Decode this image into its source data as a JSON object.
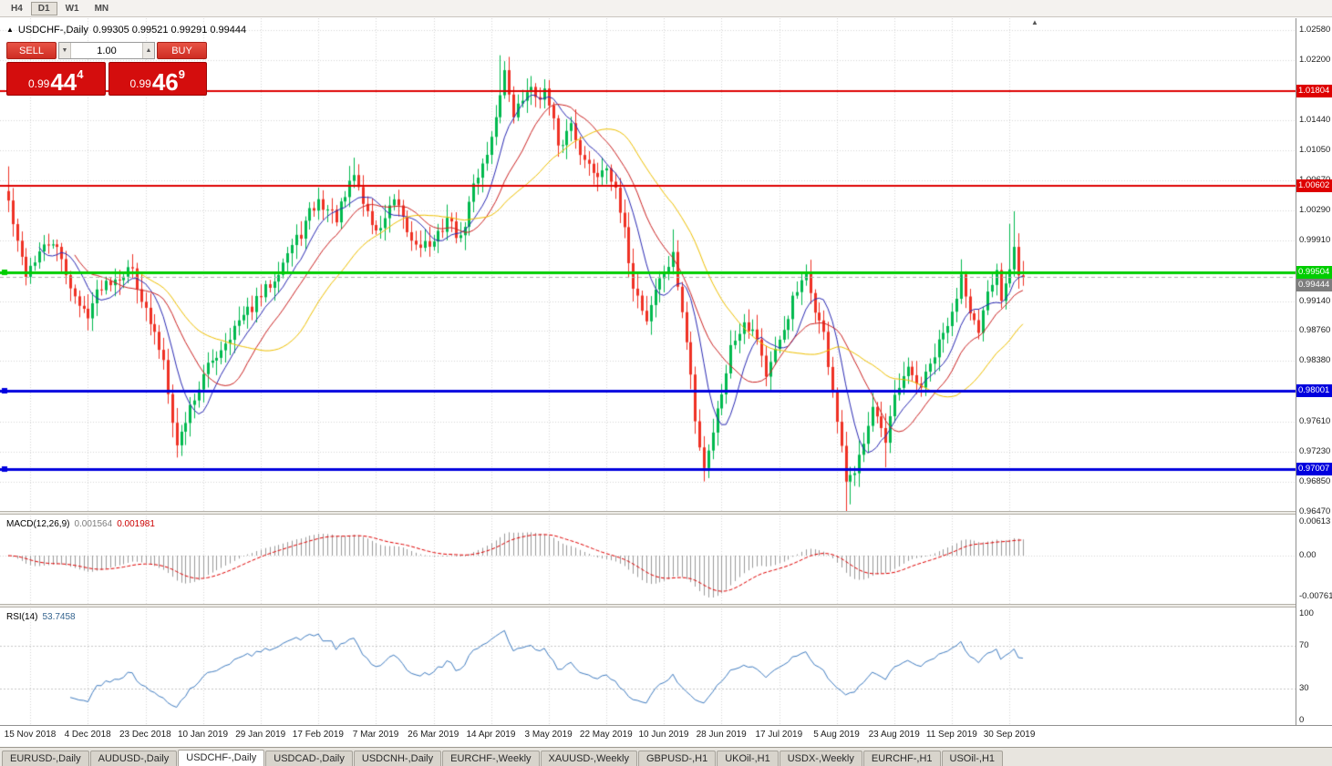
{
  "toolbar": {
    "timeframes": [
      {
        "label": "H4",
        "active": false
      },
      {
        "label": "D1",
        "active": true
      },
      {
        "label": "W1",
        "active": false
      },
      {
        "label": "MN",
        "active": false
      }
    ]
  },
  "icons": {
    "one_click_toggle": "▲",
    "volume_decrease": "▼",
    "volume_increase": "▲",
    "chart_shift_marker": "▲"
  },
  "title": {
    "symbol": "USDCHF-,Daily",
    "ohlc": "0.99305 0.99521 0.99291 0.99444"
  },
  "one_click": {
    "sell_label": "SELL",
    "buy_label": "BUY",
    "volume": "1.00",
    "sell_price": {
      "prefix": "0.99",
      "big": "44",
      "sup": "4"
    },
    "buy_price": {
      "prefix": "0.99",
      "big": "46",
      "sup": "9"
    }
  },
  "macd": {
    "label": "MACD(12,26,9)",
    "value_main": "0.001564",
    "value_signal": "0.001981",
    "axis_labels": [
      {
        "text": "0.00613",
        "value": 0.00613
      },
      {
        "text": "0.00",
        "value": 0
      },
      {
        "text": "-0.00761",
        "value": -0.00761
      }
    ]
  },
  "rsi": {
    "label": "RSI(14)",
    "value": "53.7458",
    "axis_labels": [
      {
        "text": "100",
        "value": 100
      },
      {
        "text": "70",
        "value": 70
      },
      {
        "text": "30",
        "value": 30
      },
      {
        "text": "0",
        "value": 0
      }
    ]
  },
  "tabs": [
    {
      "label": "EURUSD-,Daily",
      "active": false
    },
    {
      "label": "AUDUSD-,Daily",
      "active": false
    },
    {
      "label": "USDCHF-,Daily",
      "active": true
    },
    {
      "label": "USDCAD-,Daily",
      "active": false
    },
    {
      "label": "USDCNH-,Daily",
      "active": false
    },
    {
      "label": "EURCHF-,Weekly",
      "active": false
    },
    {
      "label": "XAUUSD-,Weekly",
      "active": false
    },
    {
      "label": "GBPUSD-,H1",
      "active": false
    },
    {
      "label": "UKOil-,H1",
      "active": false
    },
    {
      "label": "USDX-,Weekly",
      "active": false
    },
    {
      "label": "EURCHF-,H1",
      "active": false
    },
    {
      "label": "USOil-,H1",
      "active": false
    }
  ],
  "chart_data": {
    "type": "candlestick",
    "symbol": "USDCHF",
    "timeframe": "Daily",
    "ohlc_current": {
      "open": 0.99305,
      "high": 0.99521,
      "low": 0.99291,
      "close": 0.99444
    },
    "bid": 0.99444,
    "ask": 0.99469,
    "price_axis_range": [
      0.9647,
      1.0258
    ],
    "price_axis_labels": [
      "1.02580",
      "1.02200",
      "1.01440",
      "1.01050",
      "1.00670",
      "1.00290",
      "0.99910",
      "0.99140",
      "0.98760",
      "0.98380",
      "0.97610",
      "0.97230",
      "0.96850",
      "0.96470"
    ],
    "date_labels": [
      "15 Nov 2018",
      "4 Dec 2018",
      "23 Dec 2018",
      "10 Jan 2019",
      "29 Jan 2019",
      "17 Feb 2019",
      "7 Mar 2019",
      "26 Mar 2019",
      "14 Apr 2019",
      "3 May 2019",
      "22 May 2019",
      "10 Jun 2019",
      "28 Jun 2019",
      "17 Jul 2019",
      "5 Aug 2019",
      "23 Aug 2019",
      "11 Sep 2019",
      "30 Sep 2019"
    ],
    "horizontal_levels": [
      {
        "price": 1.01804,
        "label": "1.01804",
        "color": "#DE0000",
        "line_width": 2,
        "handle": false
      },
      {
        "price": 1.00602,
        "label": "1.00602",
        "color": "#DE0000",
        "line_width": 2,
        "handle": false
      },
      {
        "price": 0.99504,
        "label": "0.99504",
        "color": "#00CD00",
        "line_width": 3,
        "handle": true
      },
      {
        "price": 0.98001,
        "label": "0.98001",
        "color": "#0000DE",
        "line_width": 3,
        "handle": true
      },
      {
        "price": 0.97007,
        "label": "0.97007",
        "color": "#0000DE",
        "line_width": 3,
        "handle": true
      }
    ],
    "current_price_box": {
      "price": 0.99444,
      "label": "0.99444",
      "color": "#7D7D7D"
    },
    "candles_count": 230,
    "last_close": 0.99444,
    "trend_anchors": [
      [
        0,
        1.004
      ],
      [
        2,
        0.9985
      ],
      [
        4,
        0.995
      ],
      [
        7,
        0.9975
      ],
      [
        10,
        0.999
      ],
      [
        13,
        0.995
      ],
      [
        16,
        0.9905
      ],
      [
        18,
        0.99
      ],
      [
        21,
        0.9935
      ],
      [
        24,
        0.9945
      ],
      [
        28,
        0.9955
      ],
      [
        31,
        0.99
      ],
      [
        33,
        0.987
      ],
      [
        35,
        0.984
      ],
      [
        38,
        0.973
      ],
      [
        41,
        0.978
      ],
      [
        45,
        0.983
      ],
      [
        48,
        0.9855
      ],
      [
        51,
        0.988
      ],
      [
        54,
        0.99
      ],
      [
        57,
        0.992
      ],
      [
        60,
        0.9945
      ],
      [
        63,
        0.9975
      ],
      [
        66,
        1.0
      ],
      [
        68,
        1.0025
      ],
      [
        70,
        1.004
      ],
      [
        72,
        1.003
      ],
      [
        74,
        1.002
      ],
      [
        76,
        1.0045
      ],
      [
        78,
        1.0075
      ],
      [
        80,
        1.004
      ],
      [
        83,
        1.0
      ],
      [
        85,
        1.002
      ],
      [
        87,
        1.004
      ],
      [
        89,
        1.0015
      ],
      [
        91,
        0.999
      ],
      [
        96,
        0.9985
      ],
      [
        99,
        1.002
      ],
      [
        102,
        0.999
      ],
      [
        105,
        1.006
      ],
      [
        107,
        1.009
      ],
      [
        109,
        1.012
      ],
      [
        111,
        1.018
      ],
      [
        112,
        1.0205
      ],
      [
        113,
        1.017
      ],
      [
        114,
        1.015
      ],
      [
        116,
        1.017
      ],
      [
        117,
        1.0185
      ],
      [
        119,
        1.0175
      ],
      [
        121,
        1.018
      ],
      [
        123,
        1.014
      ],
      [
        124,
        1.0105
      ],
      [
        127,
        1.014
      ],
      [
        130,
        1.009
      ],
      [
        133,
        1.0075
      ],
      [
        135,
        1.009
      ],
      [
        137,
        1.005
      ],
      [
        139,
        1.0
      ],
      [
        141,
        0.9935
      ],
      [
        144,
        0.989
      ],
      [
        146,
        0.993
      ],
      [
        148,
        0.995
      ],
      [
        150,
        0.997
      ],
      [
        152,
        0.99
      ],
      [
        154,
        0.982
      ],
      [
        155,
        0.976
      ],
      [
        157,
        0.9705
      ],
      [
        159,
        0.975
      ],
      [
        161,
        0.98
      ],
      [
        163,
        0.9855
      ],
      [
        166,
        0.989
      ],
      [
        169,
        0.987
      ],
      [
        171,
        0.982
      ],
      [
        174,
        0.986
      ],
      [
        177,
        0.9915
      ],
      [
        180,
        0.9945
      ],
      [
        182,
        0.9905
      ],
      [
        184,
        0.987
      ],
      [
        186,
        0.98
      ],
      [
        187,
        0.976
      ],
      [
        189,
        0.9685
      ],
      [
        191,
        0.969
      ],
      [
        193,
        0.974
      ],
      [
        195,
        0.9785
      ],
      [
        197,
        0.975
      ],
      [
        198,
        0.973
      ],
      [
        200,
        0.979
      ],
      [
        203,
        0.9825
      ],
      [
        206,
        0.9805
      ],
      [
        209,
        0.9845
      ],
      [
        212,
        0.9885
      ],
      [
        213,
        0.9895
      ],
      [
        215,
        0.995
      ],
      [
        217,
        0.9905
      ],
      [
        219,
        0.987
      ],
      [
        221,
        0.992
      ],
      [
        223,
        0.995
      ],
      [
        224,
        0.992
      ],
      [
        226,
        0.996
      ],
      [
        227,
        0.999
      ],
      [
        228,
        0.995
      ],
      [
        229,
        0.9944
      ]
    ],
    "wick_spikes": [
      {
        "i": 0,
        "high": 1.0085
      },
      {
        "i": 38,
        "low": 0.9716
      },
      {
        "i": 78,
        "high": 1.0096
      },
      {
        "i": 111,
        "high": 1.0226
      },
      {
        "i": 112,
        "high": 1.0212
      },
      {
        "i": 121,
        "high": 1.0192
      },
      {
        "i": 150,
        "high": 1.0005
      },
      {
        "i": 157,
        "low": 0.9693
      },
      {
        "i": 189,
        "low": 0.9646
      },
      {
        "i": 190,
        "low": 0.9656
      },
      {
        "i": 198,
        "low": 0.9703
      },
      {
        "i": 215,
        "high": 0.9967
      },
      {
        "i": 226,
        "high": 1.0012
      },
      {
        "i": 227,
        "high": 1.0028
      }
    ],
    "moving_averages": [
      {
        "period": 8,
        "color": "#2A2AB4"
      },
      {
        "period": 16,
        "color": "#CC2222"
      },
      {
        "period": 30,
        "color": "#EFC000"
      }
    ],
    "indicators": {
      "macd": {
        "fast": 12,
        "slow": 26,
        "signal": 9,
        "histogram_color": "#9A9A9A",
        "signal_color": "#E00000"
      },
      "rsi": {
        "period": 14,
        "levels": [
          70,
          30
        ],
        "color": "#3F7CC1"
      }
    },
    "colors": {
      "bull": "#00B94E",
      "bear": "#EF3124",
      "grid": "#D6D6D6",
      "background": "#FFFFFF"
    }
  }
}
